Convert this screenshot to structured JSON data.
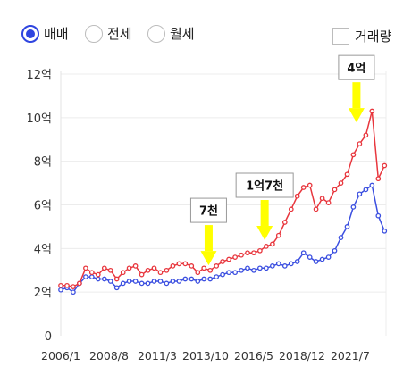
{
  "controls": {
    "radios": [
      {
        "label": "매매",
        "checked": true
      },
      {
        "label": "전세",
        "checked": false
      },
      {
        "label": "월세",
        "checked": false
      }
    ],
    "volume_checkbox": {
      "label": "거래량",
      "checked": false
    }
  },
  "colors": {
    "accent": "#2f45e0",
    "sale": "#e8363d",
    "jeonse": "#3b4fe0",
    "marker": "#ffff00"
  },
  "chart_data": {
    "type": "line",
    "xlabel": "",
    "ylabel": "",
    "ylim": [
      0,
      12
    ],
    "yticks": [
      "0",
      "2억",
      "4억",
      "6억",
      "8억",
      "10억",
      "12억"
    ],
    "xticks": [
      "2006/1",
      "2008/8",
      "2011/3",
      "2013/10",
      "2016/5",
      "2018/12",
      "2021/7"
    ],
    "xlim": [
      "2006/1",
      "2023/6"
    ],
    "grid": true,
    "series": [
      {
        "x": [
          "2006/1",
          "2006/5",
          "2006/9",
          "2007/1",
          "2007/5",
          "2007/9",
          "2008/1",
          "2008/5",
          "2008/9",
          "2009/1",
          "2009/5",
          "2009/9",
          "2010/1",
          "2010/5",
          "2010/9",
          "2011/1",
          "2011/5",
          "2011/9",
          "2012/1",
          "2012/5",
          "2012/9",
          "2013/1",
          "2013/5",
          "2013/9",
          "2014/1",
          "2014/5",
          "2014/9",
          "2015/1",
          "2015/5",
          "2015/9",
          "2016/1",
          "2016/5",
          "2016/9",
          "2017/1",
          "2017/5",
          "2017/9",
          "2018/1",
          "2018/5",
          "2018/9",
          "2019/1",
          "2019/5",
          "2019/9",
          "2020/1",
          "2020/5",
          "2020/9",
          "2021/1",
          "2021/5",
          "2021/9",
          "2022/1",
          "2022/5",
          "2022/9",
          "2023/1",
          "2023/5"
        ],
        "values": [
          2.3,
          2.3,
          2.25,
          2.4,
          3.1,
          2.9,
          2.8,
          3.1,
          3.0,
          2.6,
          2.9,
          3.1,
          3.2,
          2.8,
          3.0,
          3.1,
          2.9,
          3.0,
          3.2,
          3.3,
          3.3,
          3.2,
          2.9,
          3.1,
          3.0,
          3.2,
          3.4,
          3.5,
          3.6,
          3.7,
          3.8,
          3.8,
          3.9,
          4.1,
          4.2,
          4.6,
          5.2,
          5.8,
          6.4,
          6.8,
          6.9,
          5.8,
          6.3,
          6.1,
          6.7,
          7.0,
          7.4,
          8.3,
          8.8,
          9.2,
          10.3,
          7.2,
          7.8
        ]
      },
      {
        "x": [
          "2006/1",
          "2006/5",
          "2006/9",
          "2007/1",
          "2007/5",
          "2007/9",
          "2008/1",
          "2008/5",
          "2008/9",
          "2009/1",
          "2009/5",
          "2009/9",
          "2010/1",
          "2010/5",
          "2010/9",
          "2011/1",
          "2011/5",
          "2011/9",
          "2012/1",
          "2012/5",
          "2012/9",
          "2013/1",
          "2013/5",
          "2013/9",
          "2014/1",
          "2014/5",
          "2014/9",
          "2015/1",
          "2015/5",
          "2015/9",
          "2016/1",
          "2016/5",
          "2016/9",
          "2017/1",
          "2017/5",
          "2017/9",
          "2018/1",
          "2018/5",
          "2018/9",
          "2019/1",
          "2019/5",
          "2019/9",
          "2020/1",
          "2020/5",
          "2020/9",
          "2021/1",
          "2021/5",
          "2021/9",
          "2022/1",
          "2022/5",
          "2022/9",
          "2023/1",
          "2023/5"
        ],
        "values": [
          2.1,
          2.2,
          2.0,
          2.4,
          2.7,
          2.7,
          2.6,
          2.6,
          2.5,
          2.2,
          2.4,
          2.5,
          2.5,
          2.4,
          2.4,
          2.5,
          2.5,
          2.4,
          2.5,
          2.5,
          2.6,
          2.6,
          2.5,
          2.6,
          2.6,
          2.7,
          2.8,
          2.9,
          2.9,
          3.0,
          3.1,
          3.0,
          3.1,
          3.1,
          3.2,
          3.3,
          3.2,
          3.3,
          3.4,
          3.8,
          3.6,
          3.4,
          3.5,
          3.6,
          3.9,
          4.5,
          5.0,
          5.9,
          6.5,
          6.7,
          6.9,
          5.5,
          4.8
        ]
      }
    ],
    "annotations": [
      {
        "label": "7천",
        "x": "2013/12",
        "y": 3.15
      },
      {
        "label": "1억7천",
        "x": "2016/12",
        "y": 4.3
      },
      {
        "label": "4억",
        "x": "2021/11",
        "y": 9.7
      }
    ]
  }
}
